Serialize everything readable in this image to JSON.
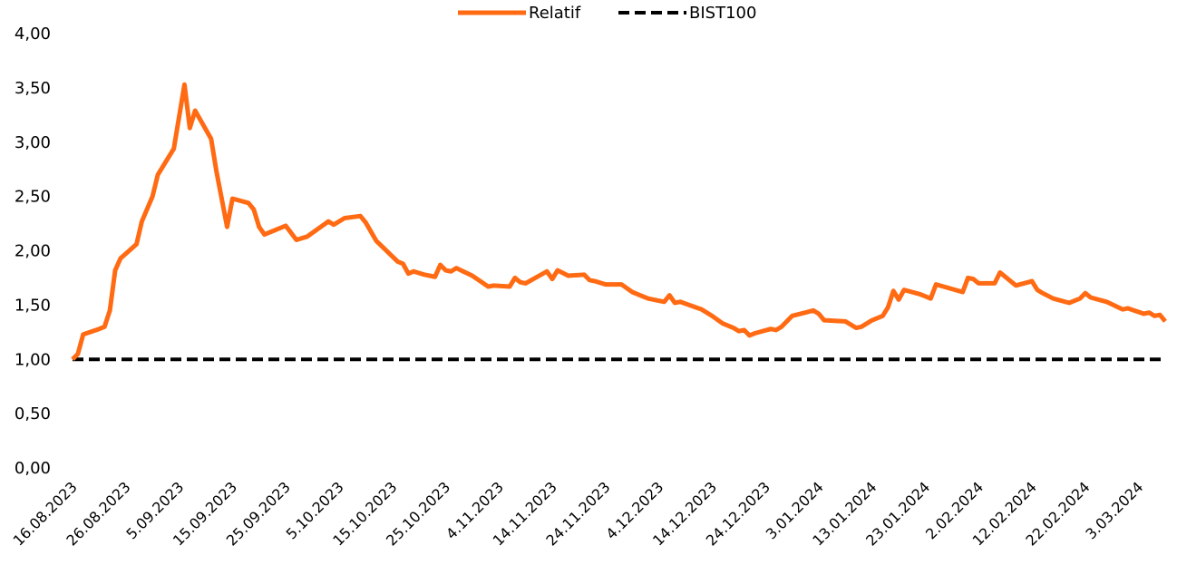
{
  "chart_data": {
    "type": "line",
    "x": [
      "2023-08-16",
      "2023-08-17",
      "2023-08-18",
      "2023-08-21",
      "2023-08-22",
      "2023-08-23",
      "2023-08-24",
      "2023-08-25",
      "2023-08-28",
      "2023-08-29",
      "2023-08-31",
      "2023-09-01",
      "2023-09-04",
      "2023-09-06",
      "2023-09-07",
      "2023-09-08",
      "2023-09-11",
      "2023-09-12",
      "2023-09-14",
      "2023-09-15",
      "2023-09-18",
      "2023-09-19",
      "2023-09-20",
      "2023-09-21",
      "2023-09-25",
      "2023-09-27",
      "2023-09-29",
      "2023-10-03",
      "2023-10-04",
      "2023-10-06",
      "2023-10-09",
      "2023-10-10",
      "2023-10-12",
      "2023-10-16",
      "2023-10-17",
      "2023-10-18",
      "2023-10-19",
      "2023-10-21",
      "2023-10-23",
      "2023-10-24",
      "2023-10-25",
      "2023-10-26",
      "2023-10-27",
      "2023-10-30",
      "2023-11-02",
      "2023-11-03",
      "2023-11-06",
      "2023-11-07",
      "2023-11-08",
      "2023-11-09",
      "2023-11-13",
      "2023-11-14",
      "2023-11-15",
      "2023-11-17",
      "2023-11-20",
      "2023-11-21",
      "2023-11-22",
      "2023-11-24",
      "2023-11-27",
      "2023-11-29",
      "2023-11-30",
      "2023-12-02",
      "2023-12-05",
      "2023-12-06",
      "2023-12-07",
      "2023-12-08",
      "2023-12-12",
      "2023-12-14",
      "2023-12-16",
      "2023-12-18",
      "2023-12-19",
      "2023-12-20",
      "2023-12-21",
      "2023-12-22",
      "2023-12-25",
      "2023-12-26",
      "2023-12-27",
      "2023-12-29",
      "2024-01-02",
      "2024-01-03",
      "2024-01-04",
      "2024-01-08",
      "2024-01-10",
      "2024-01-11",
      "2024-01-13",
      "2024-01-15",
      "2024-01-16",
      "2024-01-17",
      "2024-01-18",
      "2024-01-19",
      "2024-01-22",
      "2024-01-24",
      "2024-01-25",
      "2024-01-30",
      "2024-01-31",
      "2024-02-01",
      "2024-02-02",
      "2024-02-05",
      "2024-02-06",
      "2024-02-09",
      "2024-02-12",
      "2024-02-13",
      "2024-02-14",
      "2024-02-16",
      "2024-02-19",
      "2024-02-21",
      "2024-02-22",
      "2024-02-23",
      "2024-02-26",
      "2024-02-29",
      "2024-03-01",
      "2024-03-04",
      "2024-03-05",
      "2024-03-06",
      "2024-03-07",
      "2024-03-08"
    ],
    "series": [
      {
        "name": "Relatif",
        "color": "#ff6a13",
        "dash": false,
        "values": [
          1.0,
          1.05,
          1.23,
          1.28,
          1.3,
          1.45,
          1.82,
          1.93,
          2.06,
          2.27,
          2.5,
          2.7,
          2.94,
          3.53,
          3.13,
          3.29,
          3.03,
          2.73,
          2.22,
          2.48,
          2.44,
          2.38,
          2.22,
          2.15,
          2.23,
          2.1,
          2.13,
          2.27,
          2.24,
          2.3,
          2.32,
          2.26,
          2.09,
          1.9,
          1.88,
          1.79,
          1.81,
          1.78,
          1.76,
          1.87,
          1.82,
          1.81,
          1.84,
          1.77,
          1.67,
          1.68,
          1.67,
          1.75,
          1.71,
          1.7,
          1.81,
          1.74,
          1.82,
          1.77,
          1.78,
          1.73,
          1.72,
          1.69,
          1.69,
          1.62,
          1.6,
          1.56,
          1.53,
          1.59,
          1.52,
          1.53,
          1.46,
          1.4,
          1.33,
          1.29,
          1.26,
          1.27,
          1.22,
          1.24,
          1.28,
          1.27,
          1.3,
          1.4,
          1.45,
          1.42,
          1.36,
          1.35,
          1.29,
          1.3,
          1.36,
          1.4,
          1.48,
          1.63,
          1.55,
          1.64,
          1.6,
          1.56,
          1.69,
          1.62,
          1.75,
          1.74,
          1.7,
          1.7,
          1.8,
          1.68,
          1.72,
          1.64,
          1.61,
          1.56,
          1.52,
          1.56,
          1.61,
          1.57,
          1.53,
          1.46,
          1.47,
          1.42,
          1.43,
          1.4,
          1.41,
          1.35
        ]
      },
      {
        "name": "BIST100",
        "color": "#000000",
        "dash": true,
        "values": [
          1,
          1,
          1,
          1,
          1,
          1,
          1,
          1,
          1,
          1,
          1,
          1,
          1,
          1,
          1,
          1,
          1,
          1,
          1,
          1,
          1,
          1,
          1,
          1,
          1,
          1,
          1,
          1,
          1,
          1,
          1,
          1,
          1,
          1,
          1,
          1,
          1,
          1,
          1,
          1,
          1,
          1,
          1,
          1,
          1,
          1,
          1,
          1,
          1,
          1,
          1,
          1,
          1,
          1,
          1,
          1,
          1,
          1,
          1,
          1,
          1,
          1,
          1,
          1,
          1,
          1,
          1,
          1,
          1,
          1,
          1,
          1,
          1,
          1,
          1,
          1,
          1,
          1,
          1,
          1,
          1,
          1,
          1,
          1,
          1,
          1,
          1,
          1,
          1,
          1,
          1,
          1,
          1,
          1,
          1,
          1,
          1,
          1,
          1,
          1,
          1,
          1,
          1,
          1,
          1,
          1,
          1,
          1,
          1,
          1,
          1,
          1,
          1,
          1,
          1,
          1
        ]
      }
    ],
    "xlim": [
      "2023-08-16",
      "2024-03-08"
    ],
    "xticks": [
      {
        "value": "2023-08-16",
        "label": "16.08.2023"
      },
      {
        "value": "2023-08-26",
        "label": "26.08.2023"
      },
      {
        "value": "2023-09-05",
        "label": "5.09.2023"
      },
      {
        "value": "2023-09-15",
        "label": "15.09.2023"
      },
      {
        "value": "2023-09-25",
        "label": "25.09.2023"
      },
      {
        "value": "2023-10-05",
        "label": "5.10.2023"
      },
      {
        "value": "2023-10-15",
        "label": "15.10.2023"
      },
      {
        "value": "2023-10-25",
        "label": "25.10.2023"
      },
      {
        "value": "2023-11-04",
        "label": "4.11.2023"
      },
      {
        "value": "2023-11-14",
        "label": "14.11.2023"
      },
      {
        "value": "2023-11-24",
        "label": "24.11.2023"
      },
      {
        "value": "2023-12-04",
        "label": "4.12.2023"
      },
      {
        "value": "2023-12-14",
        "label": "14.12.2023"
      },
      {
        "value": "2023-12-24",
        "label": "24.12.2023"
      },
      {
        "value": "2024-01-03",
        "label": "3.01.2024"
      },
      {
        "value": "2024-01-13",
        "label": "13.01.2024"
      },
      {
        "value": "2024-01-23",
        "label": "23.01.2024"
      },
      {
        "value": "2024-02-02",
        "label": "2.02.2024"
      },
      {
        "value": "2024-02-12",
        "label": "12.02.2024"
      },
      {
        "value": "2024-02-22",
        "label": "22.02.2024"
      },
      {
        "value": "2024-03-03",
        "label": "3.03.2024"
      }
    ],
    "ylim": [
      0,
      4
    ],
    "yticks": [
      {
        "value": 0,
        "label": "0,00"
      },
      {
        "value": 0.5,
        "label": "0,50"
      },
      {
        "value": 1,
        "label": "1,00"
      },
      {
        "value": 1.5,
        "label": "1,50"
      },
      {
        "value": 2,
        "label": "2,00"
      },
      {
        "value": 2.5,
        "label": "2,50"
      },
      {
        "value": 3,
        "label": "3,00"
      },
      {
        "value": 3.5,
        "label": "3,50"
      },
      {
        "value": 4,
        "label": "4,00"
      }
    ],
    "legend": "top"
  }
}
